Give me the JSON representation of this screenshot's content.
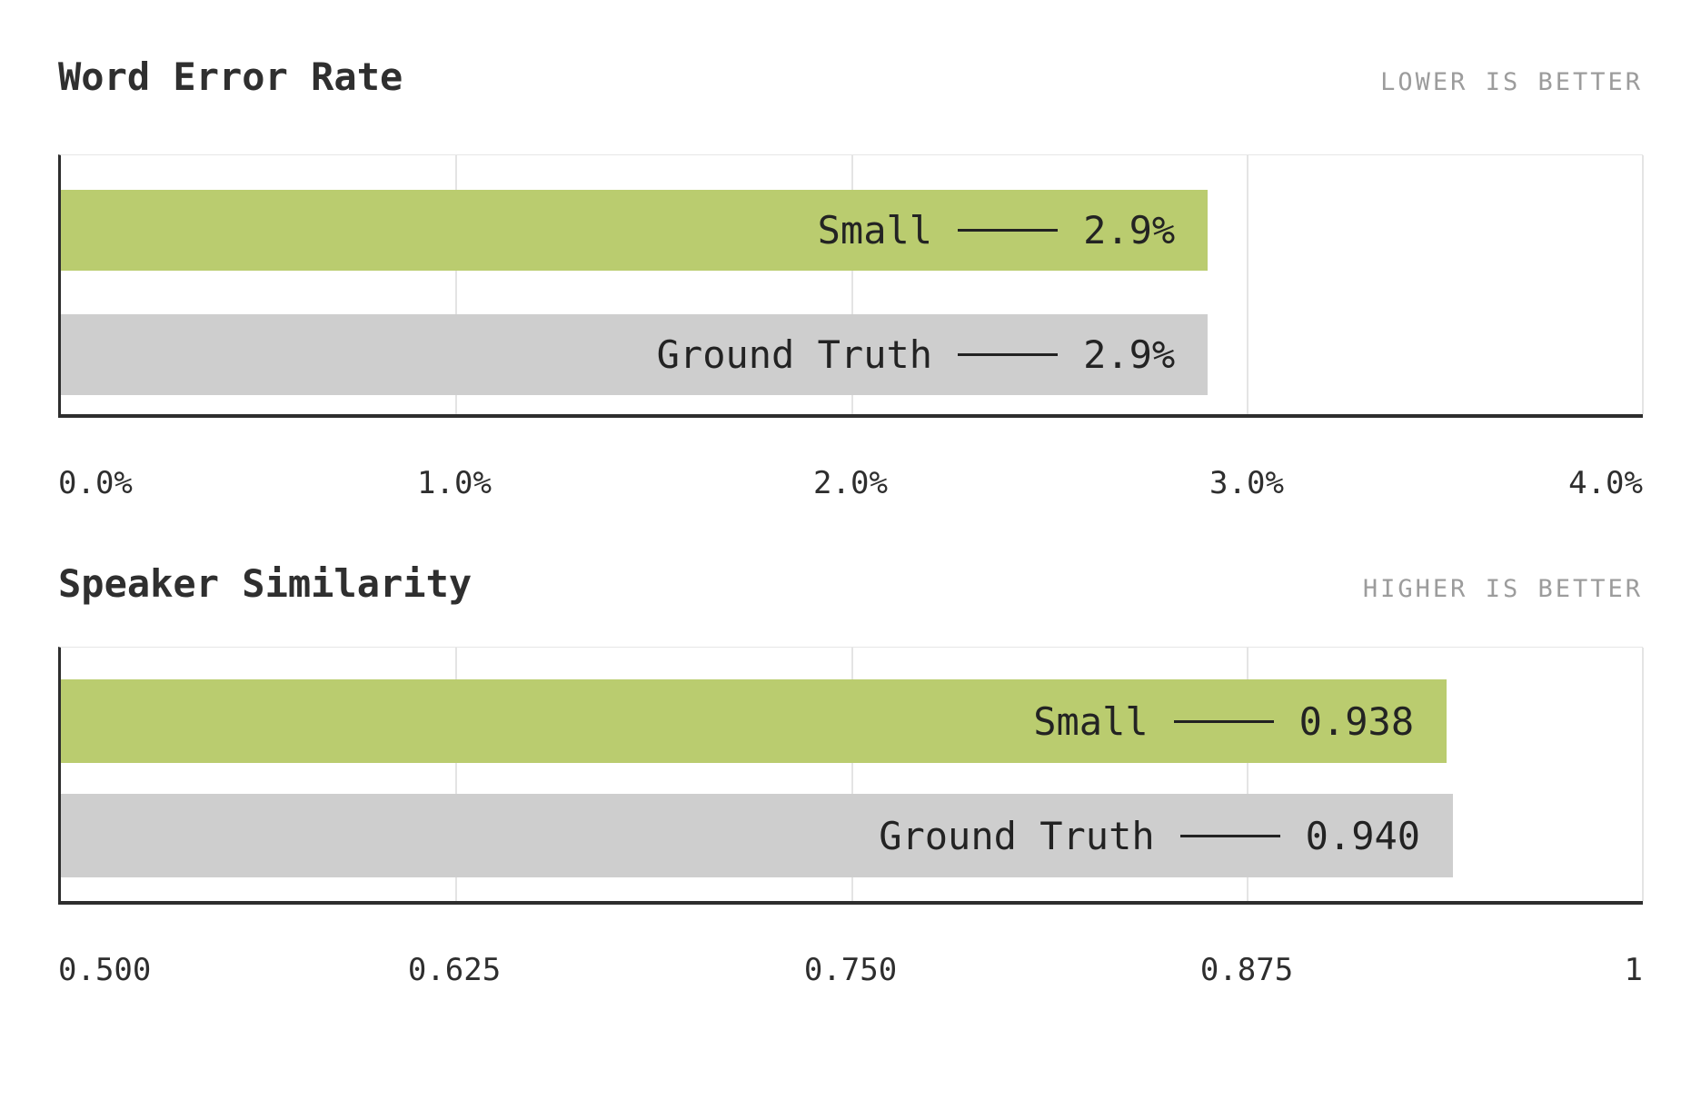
{
  "page": {
    "background": "#ffffff"
  },
  "colors": {
    "bar_primary_green": "#bacc6f",
    "bar_secondary_gray": "#cecece",
    "axis_line": "#2e2e2e",
    "gridline": "#e4e4e4",
    "title_text": "#2f2f2f",
    "hint_text": "#9c9c9c",
    "bar_text": "#232323"
  },
  "chart_data": [
    {
      "type": "bar",
      "orientation": "horizontal",
      "title": "Word Error Rate",
      "better_hint": "LOWER IS BETTER",
      "categories": [
        "Small",
        "Ground Truth"
      ],
      "values": [
        2.9,
        2.9
      ],
      "value_labels": [
        "2.9%",
        "2.9%"
      ],
      "bar_colors": [
        "#bacc6f",
        "#cecece"
      ],
      "xlim": [
        0,
        4
      ],
      "x_tick_values": [
        0,
        1,
        2,
        3,
        4
      ],
      "x_tick_labels": [
        "0.0%",
        "1.0%",
        "2.0%",
        "3.0%",
        "4.0%"
      ],
      "grid": true,
      "legend_position": "none"
    },
    {
      "type": "bar",
      "orientation": "horizontal",
      "title": "Speaker Similarity",
      "better_hint": "HIGHER IS BETTER",
      "categories": [
        "Small",
        "Ground Truth"
      ],
      "values": [
        0.938,
        0.94
      ],
      "value_labels": [
        "0.938",
        "0.940"
      ],
      "bar_colors": [
        "#bacc6f",
        "#cecece"
      ],
      "xlim": [
        0.5,
        1
      ],
      "x_tick_values": [
        0.5,
        0.625,
        0.75,
        0.875,
        1
      ],
      "x_tick_labels": [
        "0.500",
        "0.625",
        "0.750",
        "0.875",
        "1"
      ],
      "grid": true,
      "legend_position": "none"
    }
  ]
}
